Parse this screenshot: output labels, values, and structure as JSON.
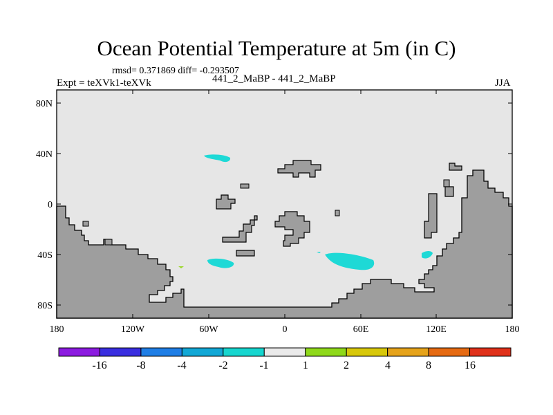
{
  "title": "Ocean Potential Temperature at 5m (in C)",
  "stats": "rmsd= 0.371869 diff= -0.293507",
  "expt": "Expt = teXVk1-teXVk",
  "subtitle": "441_2_MaBP - 441_2_MaBP",
  "season": "JJA",
  "axes": {
    "x_ticks": [
      "180",
      "120W",
      "60W",
      "0",
      "60E",
      "120E",
      "180"
    ],
    "y_ticks": [
      "80N",
      "40N",
      "0",
      "40S",
      "80S"
    ]
  },
  "colorbar": {
    "labels": [
      "-16",
      "-8",
      "-4",
      "-2",
      "-1",
      "1",
      "2",
      "4",
      "8",
      "16"
    ],
    "colors": [
      "#8c1be0",
      "#3a2ee0",
      "#1f7ee6",
      "#12a8d6",
      "#16d6cf",
      "#eaeaea",
      "#8fd91a",
      "#d8c80a",
      "#e6a31a",
      "#e66a12",
      "#e0311a"
    ]
  },
  "colors": {
    "land": "#9e9e9e",
    "ocean": "#e6e6e6",
    "warm_anomaly": "#9bd72a",
    "cool_anomaly": "#1ed9d6"
  }
}
